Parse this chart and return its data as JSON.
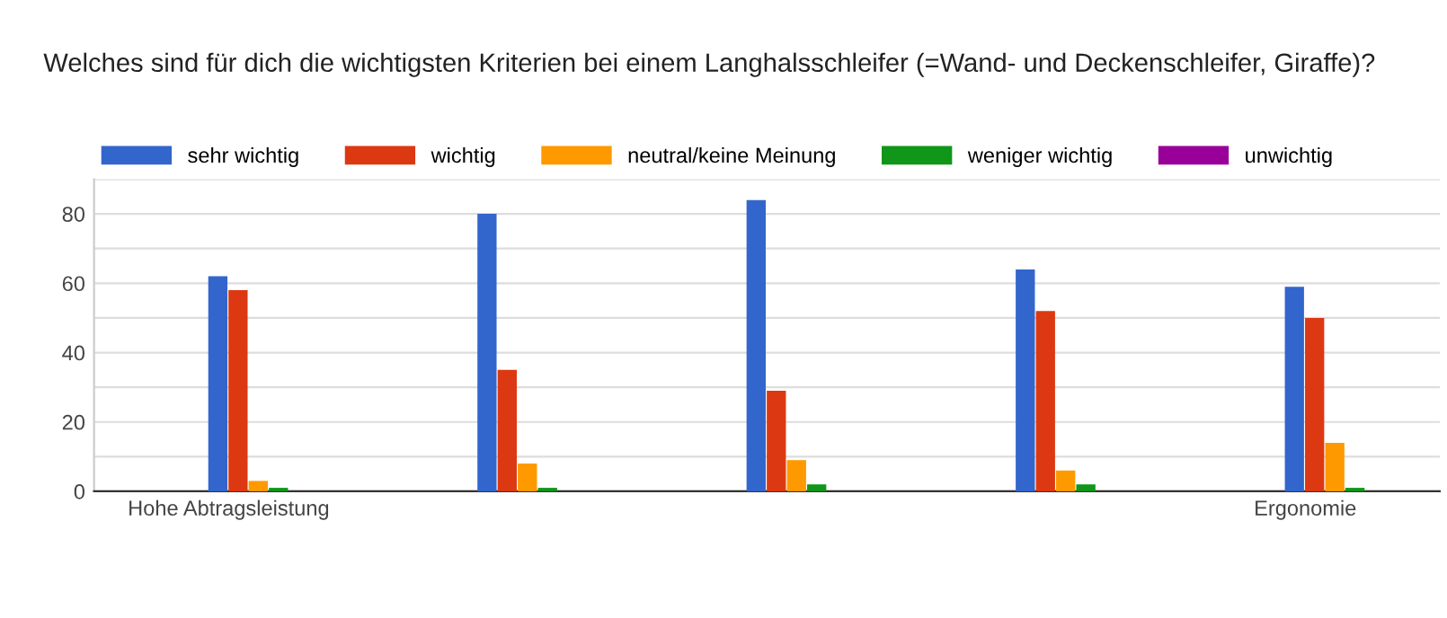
{
  "chart_data": {
    "type": "bar",
    "title": "Welches sind für dich die wichtigsten Kriterien bei einem Langhalsschleifer (=Wand- und Deckenschleifer, Giraffe)?",
    "categories": [
      "Hohe Abtragsleistung",
      null,
      null,
      null,
      "Ergonomie"
    ],
    "series": [
      {
        "name": "sehr wichtig",
        "color": "#3366cc",
        "values": [
          62,
          80,
          84,
          64,
          59
        ]
      },
      {
        "name": "wichtig",
        "color": "#dc3912",
        "values": [
          58,
          35,
          29,
          52,
          50
        ]
      },
      {
        "name": "neutral/keine Meinung",
        "color": "#ff9900",
        "values": [
          3,
          8,
          9,
          6,
          14
        ]
      },
      {
        "name": "weniger wichtig",
        "color": "#109618",
        "values": [
          1,
          1,
          2,
          2,
          1
        ]
      },
      {
        "name": "unwichtig",
        "color": "#990099",
        "values": [
          0,
          0,
          0,
          0,
          0
        ]
      }
    ],
    "ylim": [
      0,
      90
    ],
    "yticks": [
      0,
      {
        "value": 10,
        "label": null
      },
      20,
      {
        "value": 30,
        "label": null
      },
      40,
      {
        "value": 50,
        "label": null
      },
      60,
      {
        "value": 70,
        "label": null
      },
      80,
      {
        "value": 90,
        "label": null
      }
    ],
    "grid": "y",
    "legend": "top left"
  }
}
